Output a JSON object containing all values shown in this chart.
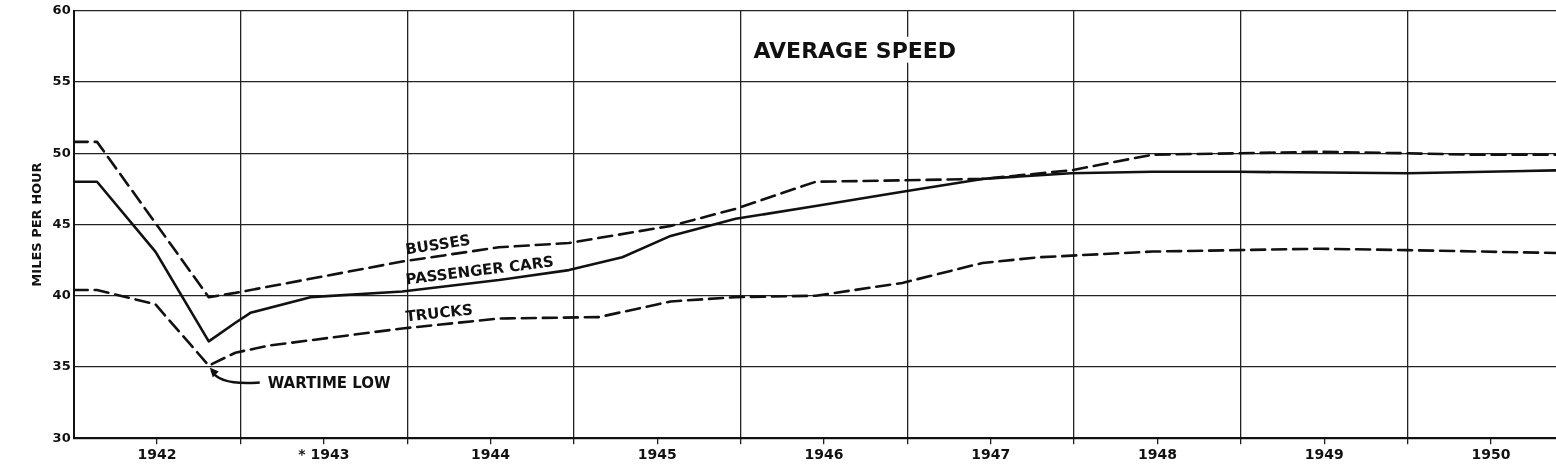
{
  "chart_data": {
    "type": "line",
    "title": "AVERAGE SPEED",
    "ylabel": "MILES PER HOUR",
    "xlim": [
      1941.5,
      1950.39
    ],
    "xticks": [
      {
        "value": 1942,
        "label": "1942"
      },
      {
        "value": 1942.5,
        "label": null
      },
      {
        "value": 1943,
        "label": "* 1943"
      },
      {
        "value": 1943.5,
        "label": null
      },
      {
        "value": 1944,
        "label": "1944"
      },
      {
        "value": 1944.5,
        "label": null
      },
      {
        "value": 1945,
        "label": "1945"
      },
      {
        "value": 1945.5,
        "label": null
      },
      {
        "value": 1946,
        "label": "1946"
      },
      {
        "value": 1946.5,
        "label": null
      },
      {
        "value": 1947,
        "label": "1947"
      },
      {
        "value": 1947.5,
        "label": null
      },
      {
        "value": 1948,
        "label": "1948"
      },
      {
        "value": 1948.5,
        "label": null
      },
      {
        "value": 1949,
        "label": "1949"
      },
      {
        "value": 1949.5,
        "label": null
      },
      {
        "value": 1950,
        "label": "1950"
      }
    ],
    "ylim": [
      30,
      60
    ],
    "yticks": [
      30,
      35,
      40,
      45,
      50,
      55,
      60
    ],
    "grid": true,
    "legend": false,
    "marker": "none",
    "series": [
      {
        "name": "BUSSES",
        "color": "#111111",
        "line_style": "dashed",
        "x": [
          1941.5,
          1941.64,
          1942.31,
          1942.47,
          1943.47,
          1944.05,
          1944.47,
          1945.08,
          1945.47,
          1945.95,
          1946.47,
          1946.95,
          1947.48,
          1947.97,
          1948.48,
          1948.97,
          1949.5,
          1949.87,
          1950.39
        ],
        "values": [
          50.8,
          50.8,
          39.9,
          40.2,
          42.4,
          43.4,
          43.7,
          44.9,
          46.1,
          48.0,
          48.1,
          48.2,
          48.8,
          49.9,
          50.0,
          50.1,
          50.0,
          49.9,
          49.9
        ]
      },
      {
        "name": "PASSENGER CARS",
        "color": "#111111",
        "line_style": "solid",
        "x": [
          1941.5,
          1941.64,
          1941.99,
          1942.31,
          1942.47,
          1942.56,
          1942.92,
          1943.47,
          1944.05,
          1944.47,
          1944.79,
          1945.08,
          1945.47,
          1945.95,
          1946.47,
          1946.95,
          1947.48,
          1947.97,
          1948.48,
          1949.5,
          1950.39
        ],
        "values": [
          48.0,
          48.0,
          43.1,
          36.8,
          38.1,
          38.8,
          39.9,
          40.3,
          41.1,
          41.8,
          42.7,
          44.2,
          45.4,
          46.3,
          47.3,
          48.2,
          48.6,
          48.7,
          48.7,
          48.6,
          48.8
        ]
      },
      {
        "name": "TRUCKS",
        "color": "#111111",
        "line_style": "dashed",
        "x": [
          1941.5,
          1941.64,
          1941.99,
          1942.31,
          1942.47,
          1942.67,
          1943.47,
          1944.05,
          1944.65,
          1945.08,
          1945.47,
          1945.95,
          1946.47,
          1946.95,
          1947.29,
          1947.97,
          1948.48,
          1948.97,
          1949.5,
          1950.39
        ],
        "values": [
          40.4,
          40.4,
          39.4,
          35.1,
          36.0,
          36.5,
          37.7,
          38.4,
          38.5,
          39.6,
          39.9,
          40.0,
          40.9,
          42.3,
          42.7,
          43.1,
          43.2,
          43.3,
          43.2,
          43.0
        ]
      }
    ],
    "annotations": [
      {
        "text": "WARTIME LOW",
        "x": 1942.31,
        "y": 35.1
      }
    ]
  }
}
